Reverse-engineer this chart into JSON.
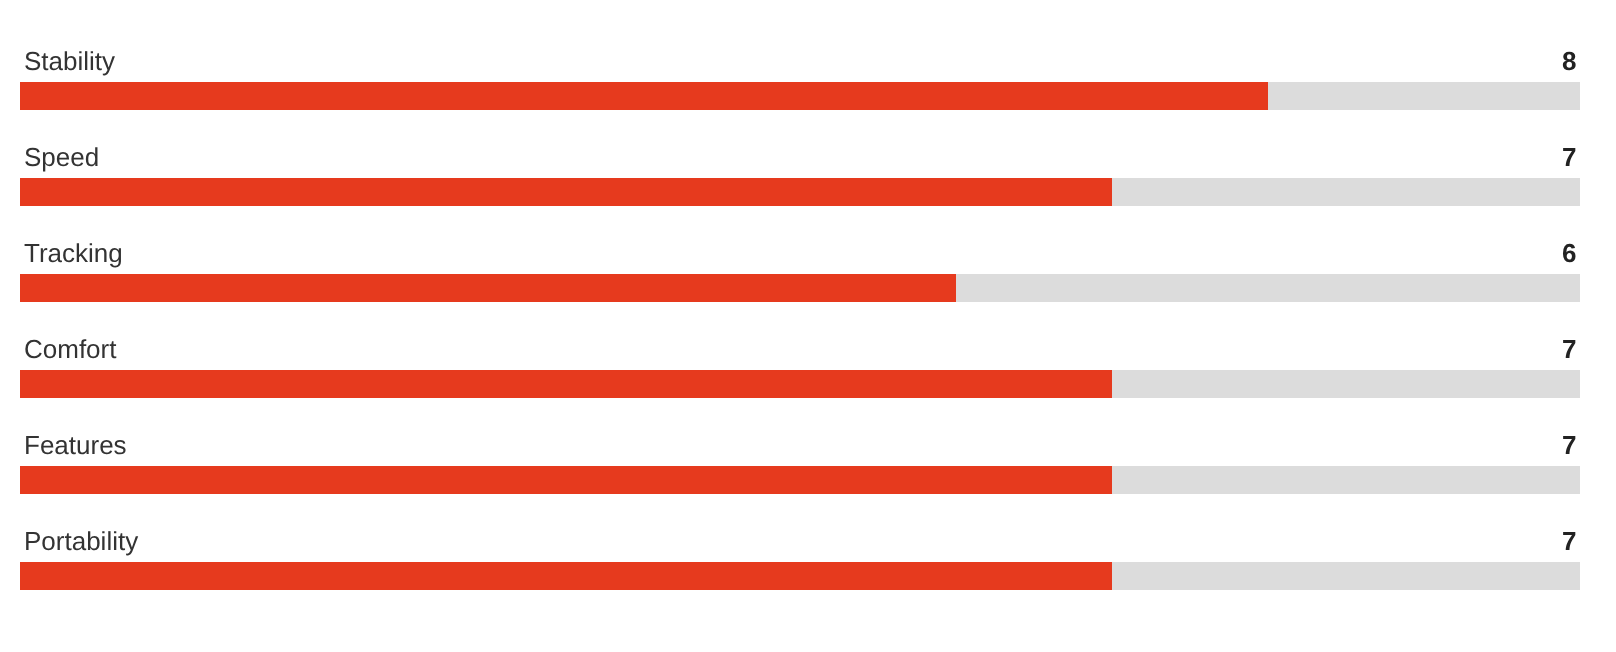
{
  "chart_data": {
    "type": "bar",
    "orientation": "horizontal",
    "categories": [
      "Stability",
      "Speed",
      "Tracking",
      "Comfort",
      "Features",
      "Portability"
    ],
    "values": [
      8,
      7,
      6,
      7,
      7,
      7
    ],
    "color": "#e63a1e",
    "xlim": [
      0,
      10
    ],
    "data_labels": true,
    "grid": false,
    "legend": false
  }
}
